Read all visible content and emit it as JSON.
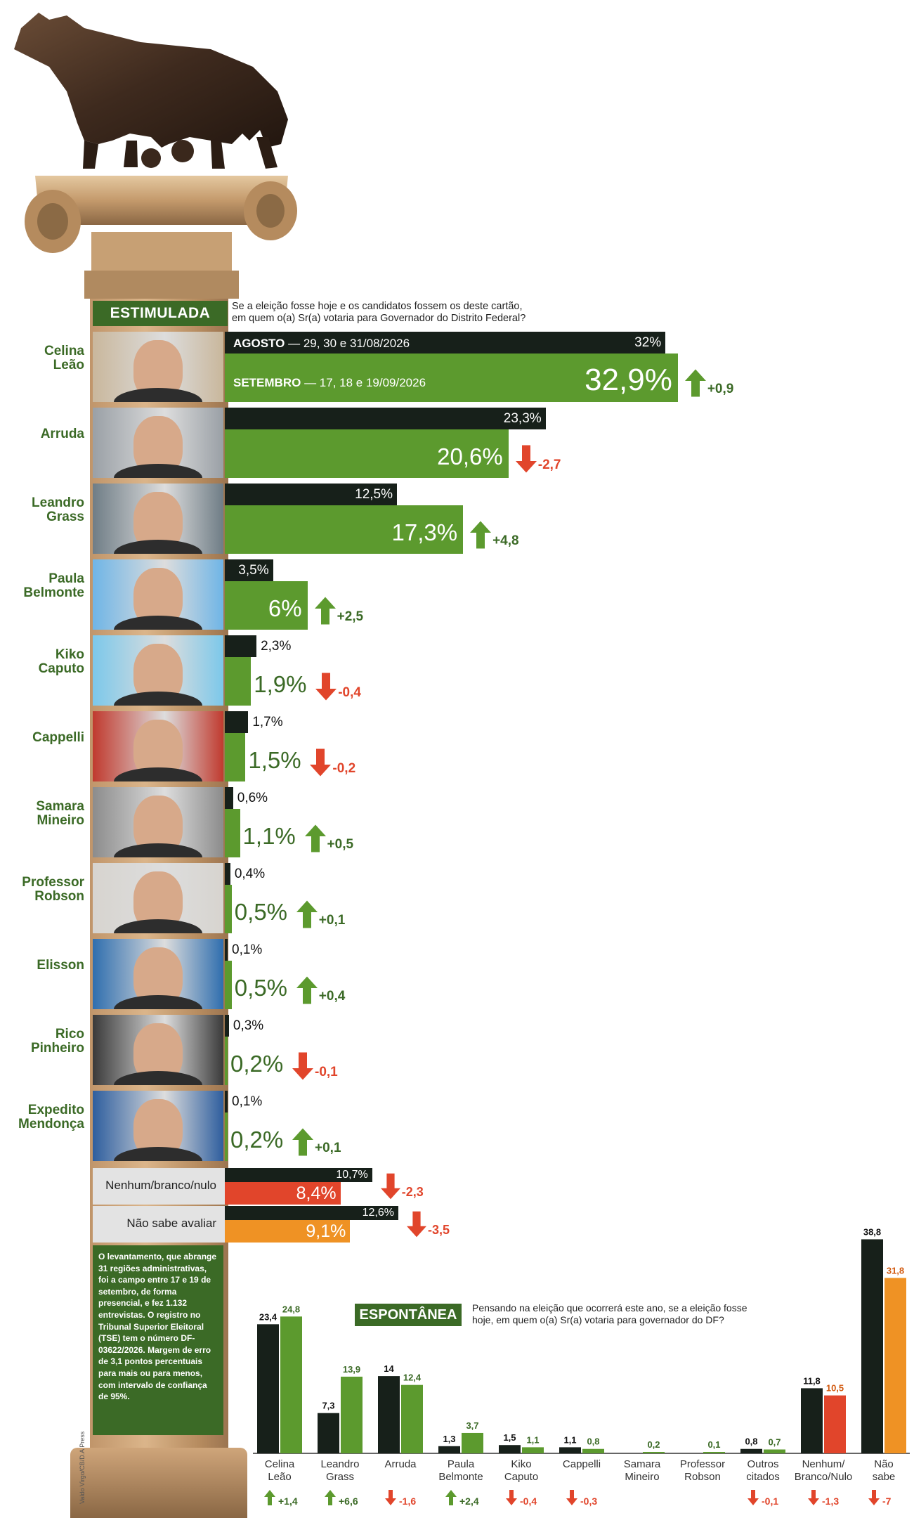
{
  "colors": {
    "green": "#5c9a2e",
    "dark": "#17201a",
    "red": "#e1452b",
    "orange": "#ef9224",
    "label_green": "#3b6a26",
    "gray_panel": "#e3e3e3"
  },
  "header": {
    "tag": "ESTIMULADA",
    "question": "Se a eleição fosse hoje e os candidatos fossem os deste cartão,",
    "question2": "em quem o(a) Sr(a) votaria para Governador do Distrito Federal?",
    "aug_label_bold": "AGOSTO",
    "aug_label_rest": " — 29, 30 e 31/08/2026",
    "sep_label_bold": "SETEMBRO",
    "sep_label_rest": " — 17, 18 e 19/09/2026"
  },
  "candidates": [
    {
      "name1": "Celina",
      "name2": "Leão",
      "aug": 32,
      "sep": 32.9,
      "aug_text": "32%",
      "sep_text": "32,9%",
      "delta": "+0,9",
      "dir": "up"
    },
    {
      "name1": "Arruda",
      "name2": "",
      "aug": 23.3,
      "sep": 20.6,
      "aug_text": "23,3%",
      "sep_text": "20,6%",
      "delta": "-2,7",
      "dir": "down"
    },
    {
      "name1": "Leandro",
      "name2": "Grass",
      "aug": 12.5,
      "sep": 17.3,
      "aug_text": "12,5%",
      "sep_text": "17,3%",
      "delta": "+4,8",
      "dir": "up"
    },
    {
      "name1": "Paula",
      "name2": "Belmonte",
      "aug": 3.5,
      "sep": 6,
      "aug_text": "3,5%",
      "sep_text": "6%",
      "delta": "+2,5",
      "dir": "up"
    },
    {
      "name1": "Kiko",
      "name2": "Caputo",
      "aug": 2.3,
      "sep": 1.9,
      "aug_text": "2,3%",
      "sep_text": "1,9%",
      "delta": "-0,4",
      "dir": "down"
    },
    {
      "name1": "Cappelli",
      "name2": "",
      "aug": 1.7,
      "sep": 1.5,
      "aug_text": "1,7%",
      "sep_text": "1,5%",
      "delta": "-0,2",
      "dir": "down"
    },
    {
      "name1": "Samara",
      "name2": "Mineiro",
      "aug": 0.6,
      "sep": 1.1,
      "aug_text": "0,6%",
      "sep_text": "1,1%",
      "delta": "+0,5",
      "dir": "up"
    },
    {
      "name1": "Professor",
      "name2": "Robson",
      "aug": 0.4,
      "sep": 0.5,
      "aug_text": "0,4%",
      "sep_text": "0,5%",
      "delta": "+0,1",
      "dir": "up"
    },
    {
      "name1": "Elisson",
      "name2": "",
      "aug": 0.1,
      "sep": 0.5,
      "aug_text": "0,1%",
      "sep_text": "0,5%",
      "delta": "+0,4",
      "dir": "up"
    },
    {
      "name1": "Rico",
      "name2": "Pinheiro",
      "aug": 0.3,
      "sep": 0.2,
      "aug_text": "0,3%",
      "sep_text": "0,2%",
      "delta": "-0,1",
      "dir": "down"
    },
    {
      "name1": "Expedito",
      "name2": "Mendonça",
      "aug": 0.1,
      "sep": 0.2,
      "aug_text": "0,1%",
      "sep_text": "0,2%",
      "delta": "+0,1",
      "dir": "up"
    }
  ],
  "others": [
    {
      "label": "Nenhum/branco/nulo",
      "aug": 10.7,
      "sep": 8.4,
      "aug_text": "10,7%",
      "sep_text": "8,4%",
      "delta": "-2,3",
      "dir": "down",
      "color": "#e1452b"
    },
    {
      "label": "Não sabe avaliar",
      "aug": 12.6,
      "sep": 9.1,
      "aug_text": "12,6%",
      "sep_text": "9,1%",
      "delta": "-3,5",
      "dir": "down",
      "color": "#ef9224"
    }
  ],
  "note": "O levantamento, que abrange 31 regiões administrativas, foi a campo entre 17 e 19 de setembro, de forma presencial, e fez 1.132 entrevistas. O registro no Tribunal Superior Eleitoral (TSE) tem o número DF-03622/2026. Margem de erro de 3,1 pontos percentuais para mais ou para menos, com intervalo de confiança de 95%.",
  "credit": "Valdo Virgo/CB/D.A Press",
  "espontanea": {
    "tag": "ESPONTÂNEA",
    "question": "Pensando na eleição que ocorrerá este ano, se a eleição fosse",
    "question2": "hoje, em quem o(a) Sr(a) votaria para governador do DF?"
  },
  "chart_data": [
    {
      "type": "bar",
      "title": "ESTIMULADA",
      "categories": [
        "Celina Leão",
        "Arruda",
        "Leandro Grass",
        "Paula Belmonte",
        "Kiko Caputo",
        "Cappelli",
        "Samara Mineiro",
        "Professor Robson",
        "Elisson",
        "Rico Pinheiro",
        "Expedito Mendonça",
        "Nenhum/branco/nulo",
        "Não sabe avaliar"
      ],
      "series": [
        {
          "name": "AGOSTO — 29, 30 e 31/08/2026",
          "values": [
            32,
            23.3,
            12.5,
            3.5,
            2.3,
            1.7,
            0.6,
            0.4,
            0.1,
            0.3,
            0.1,
            10.7,
            12.6
          ]
        },
        {
          "name": "SETEMBRO — 17, 18 e 19/09/2026",
          "values": [
            32.9,
            20.6,
            17.3,
            6,
            1.9,
            1.5,
            1.1,
            0.5,
            0.5,
            0.2,
            0.2,
            8.4,
            9.1
          ]
        }
      ]
    },
    {
      "type": "bar",
      "title": "ESPONTÂNEA",
      "categories": [
        "Celina Leão",
        "Leandro Grass",
        "Arruda",
        "Paula Belmonte",
        "Kiko Caputo",
        "Cappelli",
        "Samara Mineiro",
        "Professor Robson",
        "Outros citados",
        "Nenhum/Branco/Nulo",
        "Não sabe"
      ],
      "series": [
        {
          "values": [
            23.4,
            7.3,
            14,
            1.3,
            1.5,
            1.1,
            null,
            null,
            0.8,
            11.8,
            38.8
          ]
        },
        {
          "values": [
            24.8,
            13.9,
            12.4,
            3.7,
            1.1,
            0.8,
            0.2,
            0.1,
            0.7,
            10.5,
            31.8
          ]
        }
      ],
      "deltas": [
        "+1,4",
        "+6,6",
        "-1,6",
        "+2,4",
        "-0,4",
        "-0,3",
        "",
        "",
        "-0,1",
        "-1,3",
        "-7"
      ],
      "delta_dirs": [
        "up",
        "up",
        "down",
        "up",
        "down",
        "down",
        "",
        "",
        "down",
        "down",
        "down"
      ]
    }
  ],
  "esp_items": [
    {
      "label1": "Celina",
      "label2": "Leão",
      "v1": "23,4",
      "v2": "24,8",
      "color2": "#5c9a2e"
    },
    {
      "label1": "Leandro",
      "label2": "Grass",
      "v1": "7,3",
      "v2": "13,9",
      "color2": "#5c9a2e"
    },
    {
      "label1": "Arruda",
      "label2": "",
      "v1": "14",
      "v2": "12,4",
      "color2": "#5c9a2e"
    },
    {
      "label1": "Paula",
      "label2": "Belmonte",
      "v1": "1,3",
      "v2": "3,7",
      "color2": "#5c9a2e"
    },
    {
      "label1": "Kiko",
      "label2": "Caputo",
      "v1": "1,5",
      "v2": "1,1",
      "color2": "#5c9a2e"
    },
    {
      "label1": "Cappelli",
      "label2": "",
      "v1": "1,1",
      "v2": "0,8",
      "color2": "#5c9a2e"
    },
    {
      "label1": "Samara",
      "label2": "Mineiro",
      "v1": "",
      "v2": "0,2",
      "color2": "#5c9a2e"
    },
    {
      "label1": "Professor",
      "label2": "Robson",
      "v1": "",
      "v2": "0,1",
      "color2": "#5c9a2e"
    },
    {
      "label1": "Outros",
      "label2": "citados",
      "v1": "0,8",
      "v2": "0,7",
      "color2": "#5c9a2e"
    },
    {
      "label1": "Nenhum/",
      "label2": "Branco/Nulo",
      "v1": "11,8",
      "v2": "10,5",
      "color2": "#e1452b"
    },
    {
      "label1": "Não",
      "label2": "sabe",
      "v1": "38,8",
      "v2": "31,8",
      "color2": "#ef9224"
    }
  ]
}
